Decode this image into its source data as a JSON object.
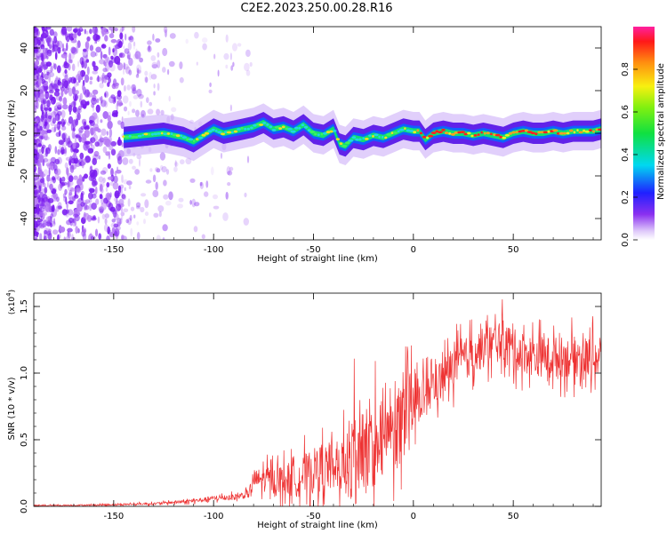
{
  "title": "C2E2.2023.250.00.28.R16",
  "chart_data": [
    {
      "type": "heatmap",
      "xlabel": "Height of straight line (km)",
      "ylabel": "Frequency (Hz)",
      "xlim": [
        -190,
        94
      ],
      "ylim": [
        -50,
        50
      ],
      "xticks": [
        -150,
        -100,
        -50,
        0,
        50
      ],
      "yticks": [
        -40,
        -20,
        0,
        20,
        40
      ],
      "colorbar": {
        "label": "Normalized spectral amplitude",
        "range": [
          0,
          1
        ],
        "ticks": [
          "0.0",
          "0.2",
          "0.4",
          "0.6",
          "0.8"
        ]
      },
      "ridge": {
        "x": [
          -145,
          -135,
          -125,
          -115,
          -110,
          -105,
          -100,
          -95,
          -90,
          -85,
          -80,
          -75,
          -70,
          -65,
          -60,
          -55,
          -50,
          -45,
          -40,
          -37,
          -34,
          -30,
          -25,
          -20,
          -15,
          -10,
          -5,
          0,
          3,
          6,
          10,
          15,
          20,
          25,
          30,
          35,
          40,
          45,
          50,
          55,
          60,
          65,
          70,
          75,
          80,
          85,
          90,
          94
        ],
        "y": [
          -2,
          -1,
          0,
          -2,
          -4,
          -1,
          2,
          0,
          1,
          2,
          3,
          5,
          2,
          3,
          1,
          4,
          0,
          -1,
          2,
          -5,
          -6,
          -2,
          -3,
          -1,
          -2,
          0,
          2,
          1,
          1,
          -3,
          0,
          1,
          0,
          0,
          -1,
          0,
          -1,
          -2,
          0,
          1,
          0,
          0,
          1,
          0,
          1,
          1,
          1,
          2
        ]
      }
    },
    {
      "type": "line",
      "xlabel": "Height of straight line (km)",
      "ylabel": "SNR (10 * v/v)",
      "y_scale_note": "(x10",
      "y_scale_exp": "4",
      "xlim": [
        -190,
        94
      ],
      "ylim": [
        0,
        1.6
      ],
      "xticks": [
        -150,
        -100,
        -50,
        0,
        50
      ],
      "yticks": [
        "0.0",
        "0.5",
        "1.0",
        "1.5"
      ],
      "color": "#ee3333",
      "trend": {
        "x": [
          -190,
          -160,
          -130,
          -110,
          -100,
          -90,
          -82,
          -80,
          -70,
          -60,
          -50,
          -40,
          -30,
          -20,
          -10,
          0,
          10,
          20,
          30,
          40,
          45,
          50,
          60,
          70,
          80,
          94
        ],
        "y": [
          0.005,
          0.01,
          0.02,
          0.04,
          0.06,
          0.07,
          0.09,
          0.2,
          0.2,
          0.2,
          0.27,
          0.3,
          0.35,
          0.4,
          0.55,
          0.75,
          0.9,
          1.05,
          1.15,
          1.22,
          1.25,
          1.18,
          1.13,
          1.12,
          1.12,
          1.12
        ]
      }
    }
  ]
}
